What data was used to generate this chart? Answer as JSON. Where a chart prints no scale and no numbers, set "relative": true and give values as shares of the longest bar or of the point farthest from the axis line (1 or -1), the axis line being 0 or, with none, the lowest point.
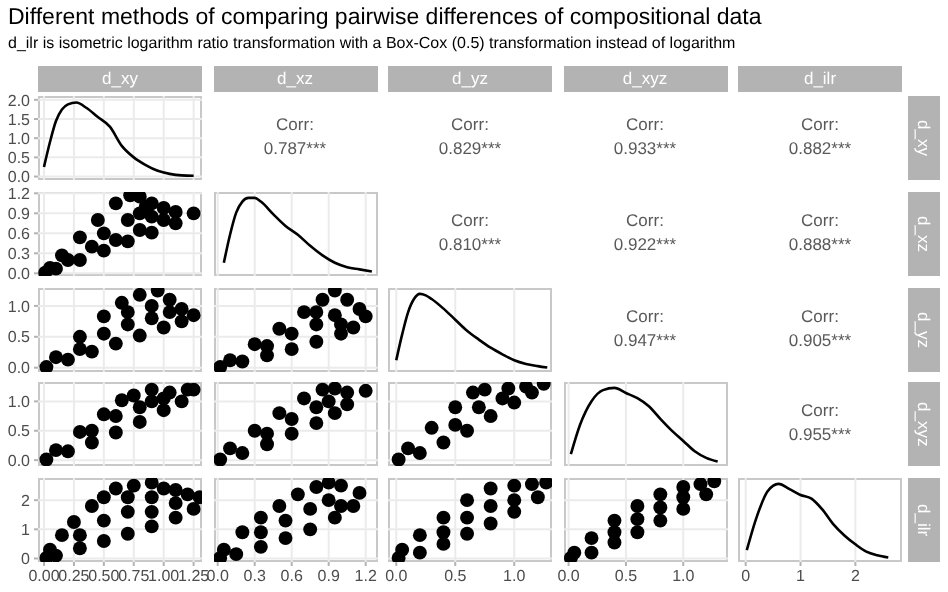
{
  "chart_data": [
    {
      "type": "other",
      "title": "Different methods of comparing pairwise differences of compositional data",
      "subtitle": "d_ilr is isometric logarithm ratio transformation with a Box-Cox (0.5) transformation instead of logarithm"
    },
    {
      "type": "line",
      "title": "d_xy",
      "x": [
        0,
        0.05,
        0.1,
        0.15,
        0.2,
        0.27,
        0.35,
        0.45,
        0.55,
        0.65,
        0.75,
        0.85,
        0.95,
        1.05,
        1.15,
        1.25
      ],
      "values": [
        0.25,
        0.9,
        1.45,
        1.75,
        1.88,
        1.93,
        1.8,
        1.55,
        1.3,
        0.8,
        0.5,
        0.3,
        0.15,
        0.07,
        0.03,
        0.02
      ],
      "color": "#000000",
      "marker": "none",
      "xlim": [
        -0.05,
        1.32
      ],
      "xticks": [
        0,
        0.25,
        0.5,
        0.75,
        1,
        1.25
      ],
      "ylim": [
        -0.09,
        2.1
      ],
      "yticks": [
        {
          "value": 0,
          "label": "0.0"
        },
        0.5,
        {
          "value": 1,
          "label": "1.0"
        },
        1.5,
        {
          "value": 2,
          "label": "2.0"
        }
      ],
      "grid": true,
      "tick_labels": "y"
    },
    {
      "type": "other",
      "title": "d_xz",
      "annotations": [
        "Corr:",
        "0.787***"
      ]
    },
    {
      "type": "other",
      "title": "d_yz",
      "annotations": [
        "Corr:",
        "0.829***"
      ]
    },
    {
      "type": "other",
      "title": "d_xyz",
      "annotations": [
        "Corr:",
        "0.933***"
      ]
    },
    {
      "type": "other",
      "title": "d_ilr",
      "y2label": "d_xy",
      "annotations": [
        "Corr:",
        "0.882***"
      ]
    },
    {
      "type": "scatter",
      "x": [
        0.01,
        0.05,
        0.15,
        0.3,
        0.45,
        0.6,
        0.72,
        0.8,
        0.9,
        1.0,
        1.1,
        1.25,
        0.1,
        0.3,
        0.5,
        0.7,
        0.9,
        1.1,
        0.2,
        0.4,
        0.5,
        0.6,
        0.7,
        0.8,
        0.8,
        0.9,
        1.0,
        0.85
      ],
      "values": [
        0.01,
        0.08,
        0.27,
        0.54,
        0.8,
        1.05,
        1.17,
        1.15,
        1.05,
        0.98,
        0.92,
        0.9,
        0.07,
        0.2,
        0.34,
        0.48,
        0.61,
        0.75,
        0.2,
        0.4,
        0.6,
        0.5,
        0.8,
        0.9,
        0.65,
        0.85,
        0.8,
        1.0
      ],
      "color": "#000000",
      "marker": "circle",
      "xlim": [
        -0.05,
        1.32
      ],
      "xticks": [
        0,
        0.25,
        0.5,
        0.75,
        1,
        1.25
      ],
      "ylim": [
        -0.04,
        1.22
      ],
      "yticks": [
        {
          "value": 0,
          "label": "0.0"
        },
        0.3,
        0.6,
        0.9,
        1.2
      ],
      "grid": true,
      "tick_labels": "y"
    },
    {
      "type": "line",
      "relative": true,
      "x": [
        0.05,
        0.1,
        0.15,
        0.2,
        0.25,
        0.3,
        0.35,
        0.45,
        0.55,
        0.65,
        0.75,
        0.85,
        0.95,
        1.05,
        1.15,
        1.25
      ],
      "values": [
        0.12,
        0.5,
        0.8,
        0.95,
        1,
        1,
        0.95,
        0.78,
        0.62,
        0.5,
        0.35,
        0.22,
        0.12,
        0.06,
        0.03,
        0
      ],
      "color": "#000000",
      "marker": "none",
      "xlim": [
        -0.03,
        1.3
      ],
      "xticks": [
        0,
        0.3,
        0.6,
        0.9,
        1.2
      ],
      "grid": "x",
      "tick_labels": false
    },
    {
      "type": "other",
      "annotations": [
        "Corr:",
        "0.810***"
      ]
    },
    {
      "type": "other",
      "annotations": [
        "Corr:",
        "0.922***"
      ]
    },
    {
      "type": "other",
      "y2label": "d_xz",
      "annotations": [
        "Corr:",
        "0.888***"
      ]
    },
    {
      "type": "scatter",
      "x": [
        0.02,
        0.1,
        0.3,
        0.5,
        0.65,
        0.8,
        0.95,
        1.05,
        1.15,
        1.25,
        0.2,
        0.4,
        0.6,
        0.8,
        1.0,
        1.15,
        0.3,
        0.5,
        0.7,
        0.7,
        0.9,
        0.9,
        1.05
      ],
      "values": [
        0.01,
        0.17,
        0.5,
        0.83,
        1.05,
        1.18,
        1.25,
        1.1,
        0.95,
        0.85,
        0.13,
        0.26,
        0.39,
        0.52,
        0.65,
        0.75,
        0.3,
        0.55,
        0.7,
        0.9,
        0.8,
        1.0,
        0.9
      ],
      "color": "#000000",
      "marker": "circle",
      "xlim": [
        -0.05,
        1.32
      ],
      "xticks": [
        0,
        0.25,
        0.5,
        0.75,
        1,
        1.25
      ],
      "ylim": [
        -0.07,
        1.29
      ],
      "yticks": [
        {
          "value": 0,
          "label": "0.0"
        },
        0.5,
        {
          "value": 1,
          "label": "1.0"
        }
      ],
      "grid": true,
      "tick_labels": "y"
    },
    {
      "type": "scatter",
      "x": [
        0.02,
        0.1,
        0.3,
        0.5,
        0.7,
        0.85,
        0.95,
        1.05,
        1.15,
        1.2,
        0.2,
        0.4,
        0.6,
        0.8,
        1.0,
        1.1,
        0.4,
        0.6,
        0.8,
        0.8,
        0.95,
        1.0
      ],
      "values": [
        0.01,
        0.12,
        0.38,
        0.63,
        0.9,
        1.1,
        1.25,
        1.1,
        0.95,
        0.83,
        0.1,
        0.2,
        0.3,
        0.42,
        0.55,
        0.65,
        0.35,
        0.55,
        0.7,
        0.9,
        0.85,
        0.7
      ],
      "color": "#000000",
      "marker": "circle",
      "xlim": [
        -0.03,
        1.3
      ],
      "xticks": [
        0,
        0.3,
        0.6,
        0.9,
        1.2
      ],
      "ylim": [
        -0.07,
        1.29
      ],
      "yticks": [
        0,
        0.5,
        1
      ],
      "grid": true,
      "tick_labels": false
    },
    {
      "type": "line",
      "relative": true,
      "x": [
        0,
        0.05,
        0.1,
        0.15,
        0.2,
        0.25,
        0.3,
        0.4,
        0.5,
        0.6,
        0.7,
        0.8,
        0.9,
        1.0,
        1.1,
        1.2,
        1.28
      ],
      "values": [
        0.1,
        0.45,
        0.75,
        0.93,
        1,
        0.98,
        0.93,
        0.8,
        0.65,
        0.5,
        0.38,
        0.27,
        0.18,
        0.1,
        0.05,
        0.02,
        0
      ],
      "color": "#000000",
      "marker": "none",
      "xlim": [
        -0.07,
        1.32
      ],
      "xticks": [
        0,
        0.5,
        1
      ],
      "grid": "x",
      "tick_labels": false
    },
    {
      "type": "other",
      "annotations": [
        "Corr:",
        "0.947***"
      ]
    },
    {
      "type": "other",
      "y2label": "d_yz",
      "annotations": [
        "Corr:",
        "0.905***"
      ]
    },
    {
      "type": "scatter",
      "x": [
        0.02,
        0.1,
        0.3,
        0.5,
        0.65,
        0.75,
        0.9,
        1.05,
        1.2,
        0.2,
        0.4,
        0.6,
        0.8,
        1.0,
        1.15,
        1.25,
        0.4,
        0.6,
        0.8,
        0.9,
        1.0
      ],
      "values": [
        0.01,
        0.17,
        0.48,
        0.78,
        1.02,
        1.1,
        1.2,
        1.15,
        1.2,
        0.15,
        0.3,
        0.47,
        0.65,
        0.85,
        1.0,
        1.2,
        0.5,
        0.75,
        0.9,
        1.0,
        1.05
      ],
      "color": "#000000",
      "marker": "circle",
      "xlim": [
        -0.05,
        1.32
      ],
      "xticks": [
        0,
        0.25,
        0.5,
        0.75,
        1,
        1.25
      ],
      "ylim": [
        -0.1,
        1.33
      ],
      "yticks": [
        {
          "value": 0,
          "label": "0.0"
        },
        0.5,
        {
          "value": 1,
          "label": "1.0"
        }
      ],
      "grid": true,
      "tick_labels": "y"
    },
    {
      "type": "scatter",
      "x": [
        0.02,
        0.1,
        0.3,
        0.5,
        0.7,
        0.85,
        0.95,
        1.05,
        1.2,
        0.2,
        0.4,
        0.6,
        0.8,
        0.95,
        1.05,
        0.4,
        0.6,
        0.8,
        0.9
      ],
      "values": [
        0.01,
        0.2,
        0.5,
        0.8,
        1.05,
        1.2,
        1.22,
        1.15,
        1.18,
        0.12,
        0.27,
        0.45,
        0.63,
        0.8,
        0.95,
        0.45,
        0.7,
        0.9,
        1.0
      ],
      "color": "#000000",
      "marker": "circle",
      "xlim": [
        -0.03,
        1.3
      ],
      "xticks": [
        0,
        0.3,
        0.6,
        0.9,
        1.2
      ],
      "ylim": [
        -0.1,
        1.33
      ],
      "yticks": [
        0,
        0.5,
        1
      ],
      "grid": true,
      "tick_labels": false
    },
    {
      "type": "scatter",
      "x": [
        0.02,
        0.1,
        0.3,
        0.5,
        0.65,
        0.75,
        0.95,
        1.1,
        1.25,
        0.2,
        0.4,
        0.6,
        0.8,
        1.0,
        1.15,
        0.5,
        0.7,
        0.9
      ],
      "values": [
        0.01,
        0.2,
        0.55,
        0.9,
        1.15,
        1.2,
        1.22,
        1.25,
        1.3,
        0.12,
        0.3,
        0.5,
        0.75,
        0.98,
        1.15,
        0.6,
        0.9,
        1.05
      ],
      "color": "#000000",
      "marker": "circle",
      "xlim": [
        -0.07,
        1.32
      ],
      "xticks": [
        0,
        0.5,
        1
      ],
      "ylim": [
        -0.1,
        1.33
      ],
      "yticks": [
        0,
        0.5,
        1
      ],
      "grid": true,
      "tick_labels": false
    },
    {
      "type": "line",
      "relative": true,
      "x": [
        0.02,
        0.1,
        0.2,
        0.3,
        0.4,
        0.5,
        0.6,
        0.7,
        0.8,
        0.9,
        1.0,
        1.1,
        1.2,
        1.3
      ],
      "values": [
        0.1,
        0.5,
        0.82,
        0.97,
        1,
        0.93,
        0.86,
        0.75,
        0.58,
        0.42,
        0.28,
        0.14,
        0.05,
        0
      ],
      "color": "#000000",
      "marker": "none",
      "xlim": [
        -0.04,
        1.39
      ],
      "xticks": [
        0,
        0.5,
        1
      ],
      "grid": "x",
      "tick_labels": false
    },
    {
      "type": "other",
      "y2label": "d_xyz",
      "annotations": [
        "Corr:",
        "0.955***"
      ]
    },
    {
      "type": "scatter",
      "x": [
        0.02,
        0.05,
        0.15,
        0.25,
        0.4,
        0.5,
        0.6,
        0.75,
        0.9,
        1.0,
        1.1,
        1.2,
        1.3,
        0.1,
        0.3,
        0.5,
        0.7,
        0.9,
        1.1,
        1.25,
        0.3,
        0.5,
        0.7,
        0.7,
        0.9,
        0.9,
        1.1
      ],
      "values": [
        0.02,
        0.3,
        0.8,
        1.25,
        1.8,
        2.1,
        2.4,
        2.5,
        2.6,
        2.4,
        2.35,
        2.2,
        2.1,
        0.1,
        0.35,
        0.6,
        0.85,
        1.1,
        1.4,
        1.7,
        0.8,
        1.3,
        1.6,
        2.1,
        1.6,
        2.1,
        1.9
      ],
      "color": "#000000",
      "marker": "circle",
      "xlim": [
        -0.05,
        1.32
      ],
      "xticks": [
        {
          "value": 0,
          "label": "0.00"
        },
        0.25,
        {
          "value": 0.5,
          "label": "0.50"
        },
        0.75,
        {
          "value": 1,
          "label": "1.00"
        },
        1.25
      ],
      "ylim": [
        -0.12,
        2.76
      ],
      "yticks": [
        0,
        1,
        2
      ],
      "grid": true
    },
    {
      "type": "scatter",
      "x": [
        0.02,
        0.05,
        0.2,
        0.35,
        0.5,
        0.65,
        0.8,
        0.9,
        1.0,
        1.15,
        0.15,
        0.35,
        0.55,
        0.75,
        0.95,
        1.1,
        0.35,
        0.55,
        0.75,
        0.9,
        1.0
      ],
      "values": [
        0.02,
        0.3,
        0.9,
        1.4,
        1.8,
        2.2,
        2.45,
        2.6,
        2.5,
        2.25,
        0.15,
        0.4,
        0.7,
        1.0,
        1.4,
        1.8,
        0.9,
        1.3,
        1.7,
        2.0,
        1.8
      ],
      "color": "#000000",
      "marker": "circle",
      "xlim": [
        -0.03,
        1.3
      ],
      "xticks": [
        {
          "value": 0,
          "label": "0.0"
        },
        0.3,
        0.6,
        0.9,
        1.2
      ],
      "ylim": [
        -0.12,
        2.76
      ],
      "yticks": [
        0,
        1,
        2
      ],
      "grid": true,
      "tick_labels": "x"
    },
    {
      "type": "scatter",
      "x": [
        0.02,
        0.05,
        0.2,
        0.4,
        0.6,
        0.8,
        1.0,
        1.15,
        1.27,
        0.2,
        0.4,
        0.6,
        0.8,
        1.0,
        1.2,
        0.4,
        0.6,
        0.8,
        1.0
      ],
      "values": [
        0.02,
        0.3,
        0.8,
        1.4,
        2.0,
        2.4,
        2.5,
        2.55,
        2.6,
        0.2,
        0.5,
        0.85,
        1.2,
        1.6,
        2.1,
        0.9,
        1.4,
        1.8,
        2.0
      ],
      "color": "#000000",
      "marker": "circle",
      "xlim": [
        -0.07,
        1.32
      ],
      "xticks": [
        {
          "value": 0,
          "label": "0.0"
        },
        0.5,
        {
          "value": 1,
          "label": "1.0"
        }
      ],
      "ylim": [
        -0.12,
        2.76
      ],
      "yticks": [
        0,
        1,
        2
      ],
      "grid": true,
      "tick_labels": "x"
    },
    {
      "type": "scatter",
      "x": [
        0.02,
        0.05,
        0.2,
        0.4,
        0.6,
        0.8,
        1.0,
        1.15,
        1.27,
        0.2,
        0.4,
        0.6,
        0.8,
        1.0,
        1.2,
        0.4,
        0.6,
        0.8,
        1.0
      ],
      "values": [
        0.02,
        0.2,
        0.7,
        1.3,
        1.8,
        2.2,
        2.45,
        2.55,
        2.65,
        0.2,
        0.55,
        0.9,
        1.3,
        1.7,
        2.2,
        0.9,
        1.35,
        1.75,
        2.1
      ],
      "color": "#000000",
      "marker": "circle",
      "xlim": [
        -0.04,
        1.39
      ],
      "xticks": [
        {
          "value": 0,
          "label": "0.0"
        },
        0.5,
        {
          "value": 1,
          "label": "1.0"
        }
      ],
      "ylim": [
        -0.12,
        2.76
      ],
      "yticks": [
        0,
        1,
        2
      ],
      "grid": true,
      "tick_labels": "x"
    },
    {
      "type": "line",
      "relative": true,
      "y2label": "d_ilr",
      "x": [
        0.02,
        0.2,
        0.4,
        0.6,
        0.8,
        1.0,
        1.2,
        1.4,
        1.6,
        1.8,
        2.0,
        2.2,
        2.4,
        2.6
      ],
      "values": [
        0.1,
        0.55,
        0.9,
        1,
        0.93,
        0.85,
        0.8,
        0.65,
        0.45,
        0.3,
        0.18,
        0.08,
        0.03,
        0
      ],
      "color": "#000000",
      "marker": "none",
      "xlim": [
        -0.14,
        2.85
      ],
      "xticks": [
        0,
        1,
        2
      ],
      "grid": "x",
      "tick_labels": "x"
    }
  ]
}
